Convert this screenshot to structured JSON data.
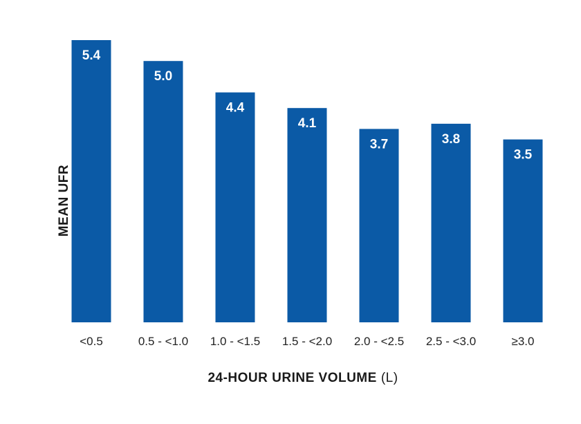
{
  "chart_data": {
    "type": "bar",
    "categories": [
      "<0.5",
      "0.5 - <1.0",
      "1.0 - <1.5",
      "1.5 - <2.0",
      "2.0 - <2.5",
      "2.5 - <3.0",
      "≥3.0"
    ],
    "values": [
      5.4,
      5.0,
      4.4,
      4.1,
      3.7,
      3.8,
      3.5
    ],
    "value_labels": [
      "5.4",
      "5.0",
      "4.4",
      "4.1",
      "3.7",
      "3.8",
      "3.5"
    ],
    "xlabel": "24-HOUR URINE VOLUME",
    "xlabel_unit": "(L)",
    "ylabel": "MEAN UFR",
    "ylim": [
      0,
      5.4
    ],
    "grid": false,
    "bar_color": "#0b5aa6",
    "label_color": "#ffffff"
  }
}
